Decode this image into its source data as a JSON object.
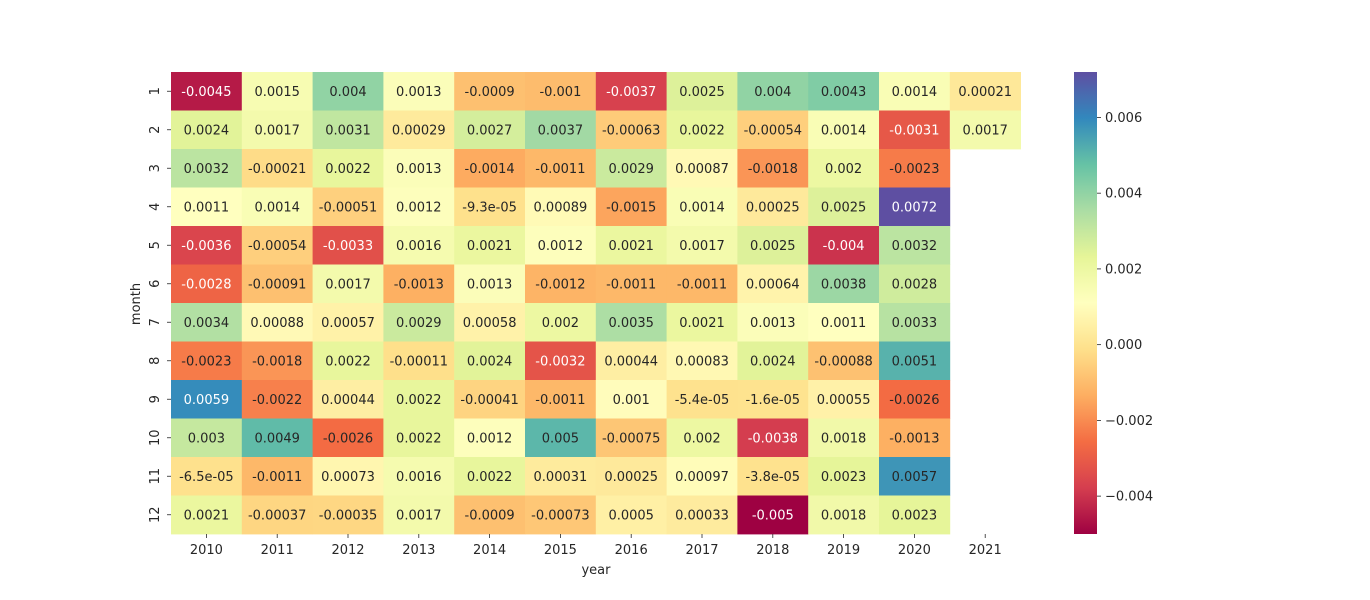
{
  "chart_data": {
    "type": "heatmap",
    "title": "",
    "xlabel": "year",
    "ylabel": "month",
    "x_categories": [
      "2010",
      "2011",
      "2012",
      "2013",
      "2014",
      "2015",
      "2016",
      "2017",
      "2018",
      "2019",
      "2020",
      "2021"
    ],
    "y_categories": [
      "1",
      "2",
      "3",
      "4",
      "5",
      "6",
      "7",
      "8",
      "9",
      "10",
      "11",
      "12"
    ],
    "colormap": "Spectral",
    "color_range": [
      -0.005,
      0.0072
    ],
    "colorbar_ticks": [
      -0.004,
      -0.002,
      0.0,
      0.002,
      0.004,
      0.006
    ],
    "colorbar_tick_labels": [
      "−0.004",
      "−0.002",
      "0.000",
      "0.002",
      "0.004",
      "0.006"
    ],
    "values": [
      [
        -0.0045,
        0.0015,
        0.004,
        0.0013,
        -0.0009,
        -0.001,
        -0.0037,
        0.0025,
        0.004,
        0.0043,
        0.0014,
        0.00021
      ],
      [
        0.0024,
        0.0017,
        0.0031,
        0.00029,
        0.0027,
        0.0037,
        -0.00063,
        0.0022,
        -0.00054,
        0.0014,
        -0.0031,
        0.0017
      ],
      [
        0.0032,
        -0.00021,
        0.0022,
        0.0013,
        -0.0014,
        -0.0011,
        0.0029,
        0.00087,
        -0.0018,
        0.002,
        -0.0023,
        null
      ],
      [
        0.0011,
        0.0014,
        -0.00051,
        0.0012,
        -9.3e-05,
        0.00089,
        -0.0015,
        0.0014,
        0.00025,
        0.0025,
        0.0072,
        null
      ],
      [
        -0.0036,
        -0.00054,
        -0.0033,
        0.0016,
        0.0021,
        0.0012,
        0.0021,
        0.0017,
        0.0025,
        -0.004,
        0.0032,
        null
      ],
      [
        -0.0028,
        -0.00091,
        0.0017,
        -0.0013,
        0.0013,
        -0.0012,
        -0.0011,
        -0.0011,
        0.00064,
        0.0038,
        0.0028,
        null
      ],
      [
        0.0034,
        0.00088,
        0.00057,
        0.0029,
        0.00058,
        0.002,
        0.0035,
        0.0021,
        0.0013,
        0.0011,
        0.0033,
        null
      ],
      [
        -0.0023,
        -0.0018,
        0.0022,
        -0.00011,
        0.0024,
        -0.0032,
        0.00044,
        0.00083,
        0.0024,
        -0.00088,
        0.0051,
        null
      ],
      [
        0.0059,
        -0.0022,
        0.00044,
        0.0022,
        -0.00041,
        -0.0011,
        0.001,
        -5.4e-05,
        -1.6e-05,
        0.00055,
        -0.0026,
        null
      ],
      [
        0.003,
        0.0049,
        -0.0026,
        0.0022,
        0.0012,
        0.005,
        -0.00075,
        0.002,
        -0.0038,
        0.0018,
        -0.0013,
        null
      ],
      [
        -6.5e-05,
        -0.0011,
        0.00073,
        0.0016,
        0.0022,
        0.00031,
        0.00025,
        0.00097,
        -3.8e-05,
        0.0023,
        0.0057,
        null
      ],
      [
        0.0021,
        -0.00037,
        -0.00035,
        0.0017,
        -0.0009,
        -0.00073,
        0.0005,
        0.00033,
        -0.005,
        0.0018,
        0.0023,
        null
      ]
    ],
    "cell_labels": [
      [
        "-0.0045",
        "0.0015",
        "0.004",
        "0.0013",
        "-0.0009",
        "-0.001",
        "-0.0037",
        "0.0025",
        "0.004",
        "0.0043",
        "0.0014",
        "0.00021"
      ],
      [
        "0.0024",
        "0.0017",
        "0.0031",
        "0.00029",
        "0.0027",
        "0.0037",
        "-0.00063",
        "0.0022",
        "-0.00054",
        "0.0014",
        "-0.0031",
        "0.0017"
      ],
      [
        "0.0032",
        "-0.00021",
        "0.0022",
        "0.0013",
        "-0.0014",
        "-0.0011",
        "0.0029",
        "0.00087",
        "-0.0018",
        "0.002",
        "-0.0023",
        ""
      ],
      [
        "0.0011",
        "0.0014",
        "-0.00051",
        "0.0012",
        "-9.3e-05",
        "0.00089",
        "-0.0015",
        "0.0014",
        "0.00025",
        "0.0025",
        "0.0072",
        ""
      ],
      [
        "-0.0036",
        "-0.00054",
        "-0.0033",
        "0.0016",
        "0.0021",
        "0.0012",
        "0.0021",
        "0.0017",
        "0.0025",
        "-0.004",
        "0.0032",
        ""
      ],
      [
        "-0.0028",
        "-0.00091",
        "0.0017",
        "-0.0013",
        "0.0013",
        "-0.0012",
        "-0.0011",
        "-0.0011",
        "0.00064",
        "0.0038",
        "0.0028",
        ""
      ],
      [
        "0.0034",
        "0.00088",
        "0.00057",
        "0.0029",
        "0.00058",
        "0.002",
        "0.0035",
        "0.0021",
        "0.0013",
        "0.0011",
        "0.0033",
        ""
      ],
      [
        "-0.0023",
        "-0.0018",
        "0.0022",
        "-0.00011",
        "0.0024",
        "-0.0032",
        "0.00044",
        "0.00083",
        "0.0024",
        "-0.00088",
        "0.0051",
        ""
      ],
      [
        "0.0059",
        "-0.0022",
        "0.00044",
        "0.0022",
        "-0.00041",
        "-0.0011",
        "0.001",
        "-5.4e-05",
        "-1.6e-05",
        "0.00055",
        "-0.0026",
        ""
      ],
      [
        "0.003",
        "0.0049",
        "-0.0026",
        "0.0022",
        "0.0012",
        "0.005",
        "-0.00075",
        "0.002",
        "-0.0038",
        "0.0018",
        "-0.0013",
        ""
      ],
      [
        "-6.5e-05",
        "-0.0011",
        "0.00073",
        "0.0016",
        "0.0022",
        "0.00031",
        "0.00025",
        "0.00097",
        "-3.8e-05",
        "0.0023",
        "0.0057",
        ""
      ],
      [
        "0.0021",
        "-0.00037",
        "-0.00035",
        "0.0017",
        "-0.0009",
        "-0.00073",
        "0.0005",
        "0.00033",
        "-0.005",
        "0.0018",
        "0.0023",
        ""
      ]
    ]
  }
}
